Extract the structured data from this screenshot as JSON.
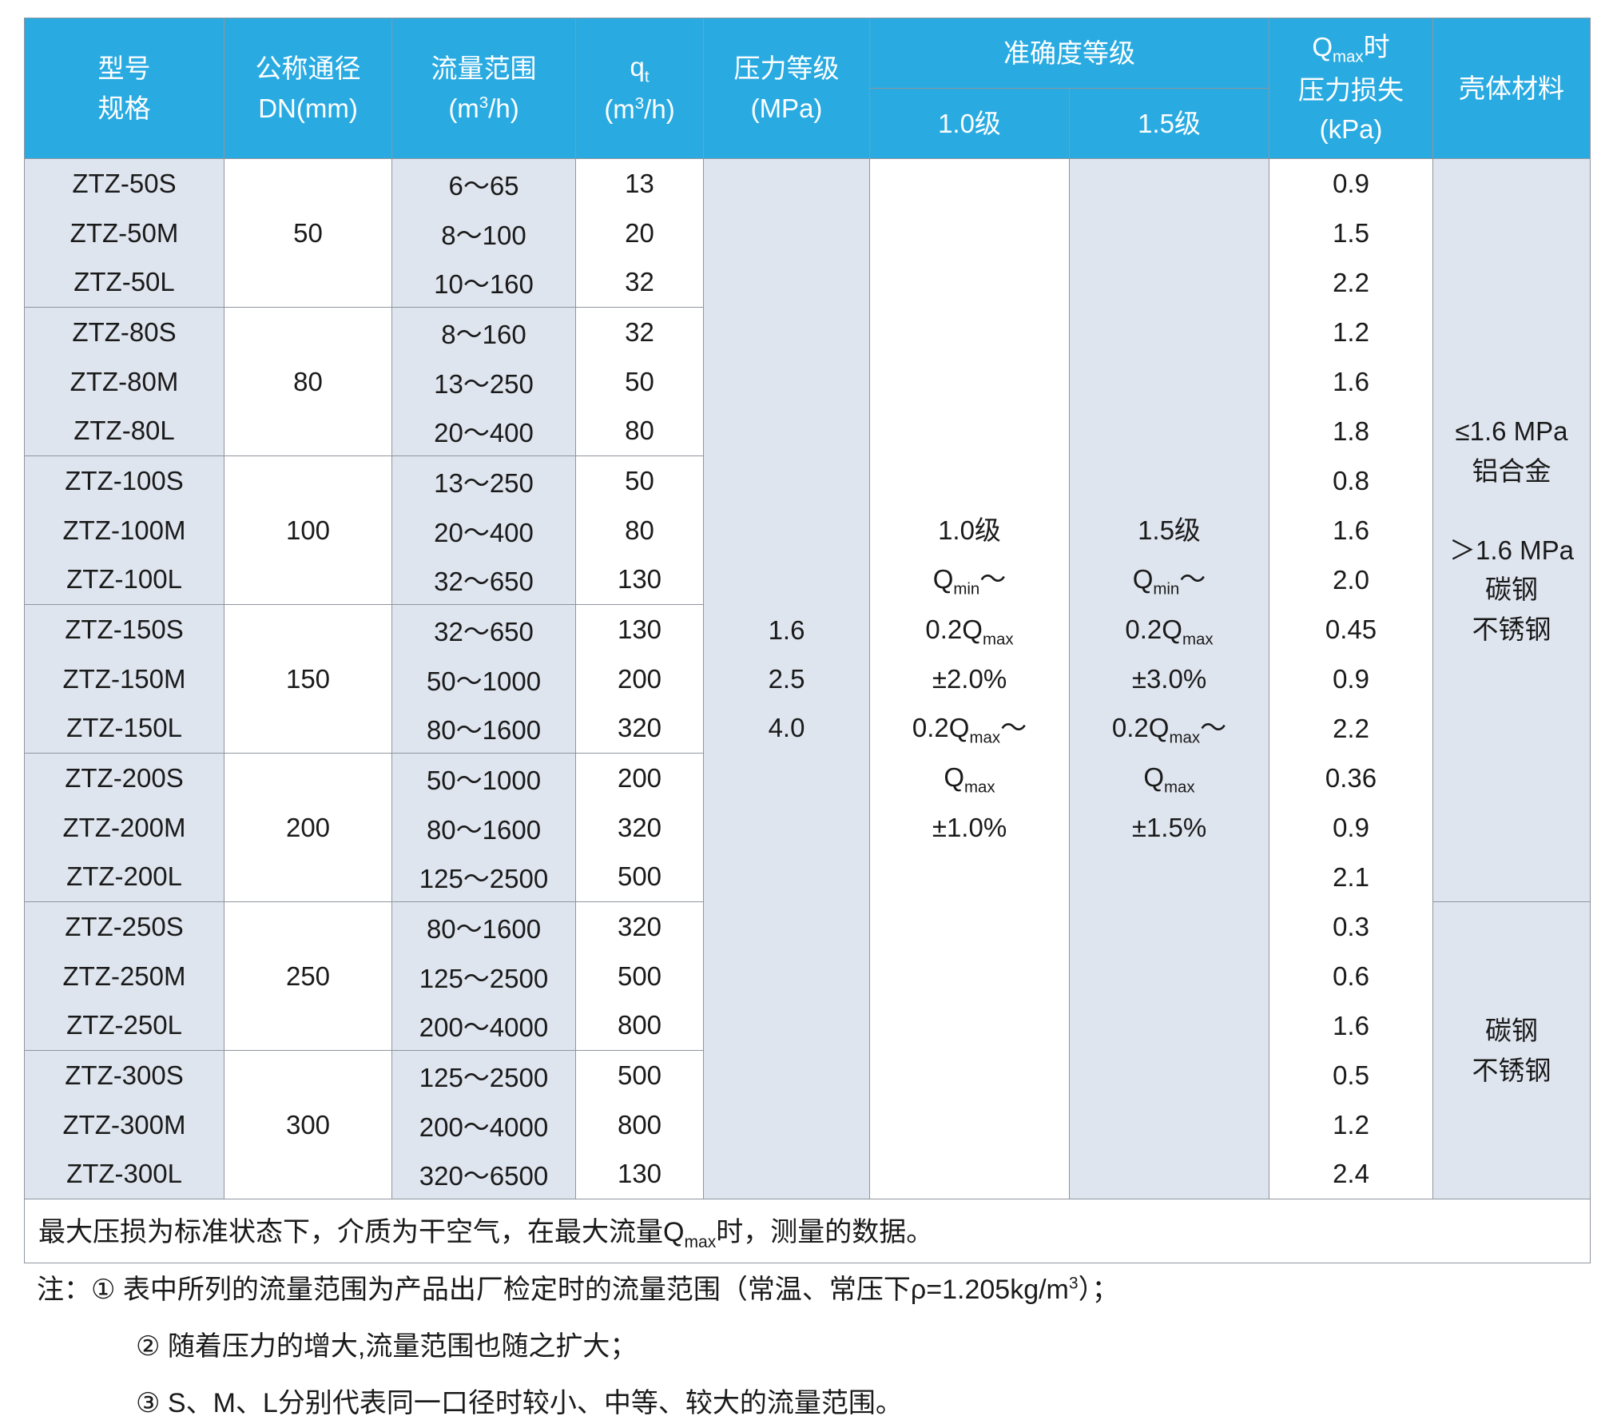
{
  "colors": {
    "header_bg": "#29abe2",
    "header_text": "#ffffff",
    "stripe_bg": "#dfe5ef",
    "border": "#8f959e",
    "text": "#1a1a1a"
  },
  "header": {
    "model": "型号\n规格",
    "dn": "公称通径\nDN(mm)",
    "flow": "流量范围\n(m^3^/h)",
    "qt": "q~t~\n(m^3^/h)",
    "pressure": "压力等级\n(MPa)",
    "accuracy": "准确度等级",
    "accuracy_10": "1.0级",
    "accuracy_15": "1.5级",
    "loss": "Q~max~时\n压力损失\n(kPa)",
    "material": "壳体材料"
  },
  "pressure_rating": "1.6\n2.5\n4.0",
  "accuracy_10": "1.0级\nQ~min~～\n0.2Q~max~\n±2.0%\n0.2Q~max~～\nQ~max~\n±1.0%",
  "accuracy_15": "1.5级\nQ~min~～\n0.2Q~max~\n±3.0%\n0.2Q~max~～\nQ~max~\n±1.5%",
  "material_group1": "≤1.6 MPa\n铝合金\n\n＞1.6 MPa\n碳钢\n不锈钢",
  "material_group2": "碳钢\n不锈钢",
  "groups": [
    {
      "dn": "50",
      "rows": [
        {
          "model": "ZTZ-50S",
          "flow": "6～65",
          "qt": "13",
          "loss": "0.9"
        },
        {
          "model": "ZTZ-50M",
          "flow": "8～100",
          "qt": "20",
          "loss": "1.5"
        },
        {
          "model": "ZTZ-50L",
          "flow": "10～160",
          "qt": "32",
          "loss": "2.2"
        }
      ]
    },
    {
      "dn": "80",
      "rows": [
        {
          "model": "ZTZ-80S",
          "flow": "8～160",
          "qt": "32",
          "loss": "1.2"
        },
        {
          "model": "ZTZ-80M",
          "flow": "13～250",
          "qt": "50",
          "loss": "1.6"
        },
        {
          "model": "ZTZ-80L",
          "flow": "20～400",
          "qt": "80",
          "loss": "1.8"
        }
      ]
    },
    {
      "dn": "100",
      "rows": [
        {
          "model": "ZTZ-100S",
          "flow": "13～250",
          "qt": "50",
          "loss": "0.8"
        },
        {
          "model": "ZTZ-100M",
          "flow": "20～400",
          "qt": "80",
          "loss": "1.6"
        },
        {
          "model": "ZTZ-100L",
          "flow": "32～650",
          "qt": "130",
          "loss": "2.0"
        }
      ]
    },
    {
      "dn": "150",
      "rows": [
        {
          "model": "ZTZ-150S",
          "flow": "32～650",
          "qt": "130",
          "loss": "0.45"
        },
        {
          "model": "ZTZ-150M",
          "flow": "50～1000",
          "qt": "200",
          "loss": "0.9"
        },
        {
          "model": "ZTZ-150L",
          "flow": "80～1600",
          "qt": "320",
          "loss": "2.2"
        }
      ]
    },
    {
      "dn": "200",
      "rows": [
        {
          "model": "ZTZ-200S",
          "flow": "50～1000",
          "qt": "200",
          "loss": "0.36"
        },
        {
          "model": "ZTZ-200M",
          "flow": "80～1600",
          "qt": "320",
          "loss": "0.9"
        },
        {
          "model": "ZTZ-200L",
          "flow": "125～2500",
          "qt": "500",
          "loss": "2.1"
        }
      ]
    },
    {
      "dn": "250",
      "rows": [
        {
          "model": "ZTZ-250S",
          "flow": "80～1600",
          "qt": "320",
          "loss": "0.3"
        },
        {
          "model": "ZTZ-250M",
          "flow": "125～2500",
          "qt": "500",
          "loss": "0.6"
        },
        {
          "model": "ZTZ-250L",
          "flow": "200～4000",
          "qt": "800",
          "loss": "1.6"
        }
      ]
    },
    {
      "dn": "300",
      "rows": [
        {
          "model": "ZTZ-300S",
          "flow": "125～2500",
          "qt": "500",
          "loss": "0.5"
        },
        {
          "model": "ZTZ-300M",
          "flow": "200～4000",
          "qt": "800",
          "loss": "1.2"
        },
        {
          "model": "ZTZ-300L",
          "flow": "320～6500",
          "qt": "130",
          "loss": "2.4"
        }
      ]
    }
  ],
  "footer_note": "最大压损为标准状态下，介质为干空气，在最大流量Q~max~时，测量的数据。",
  "notes": [
    "注：① 表中所列的流量范围为产品出厂检定时的流量范围（常温、常压下ρ=1.205kg/m^3^）；",
    "② 随着压力的增大,流量范围也随之扩大；",
    "③ S、M、L分别代表同一口径时较小、中等、较大的流量范围。"
  ]
}
